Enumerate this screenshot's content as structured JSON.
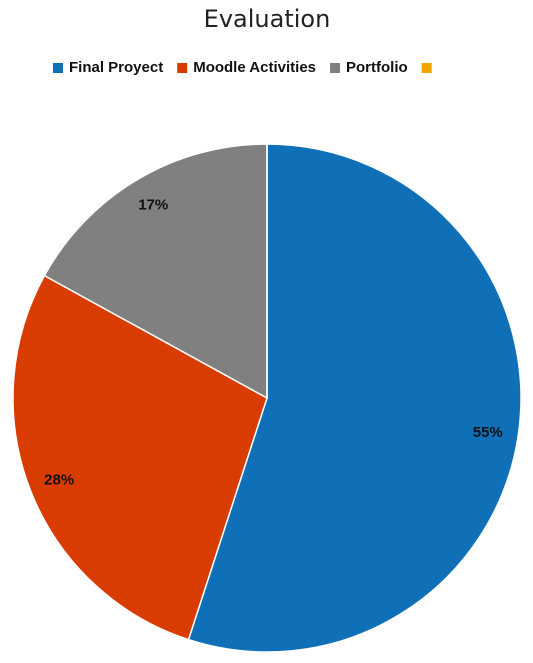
{
  "chart_data": {
    "type": "pie",
    "title": "Evaluation",
    "categories": [
      "Final Proyect",
      "Moodle Activities",
      "Portfolio",
      null
    ],
    "values": [
      55,
      28,
      17,
      0
    ],
    "value_labels": [
      "55%",
      "28%",
      "17%",
      null
    ],
    "colors": [
      "#0f70b8",
      "#d83c00",
      "#808080",
      "#f5a300"
    ],
    "legend": "top"
  }
}
